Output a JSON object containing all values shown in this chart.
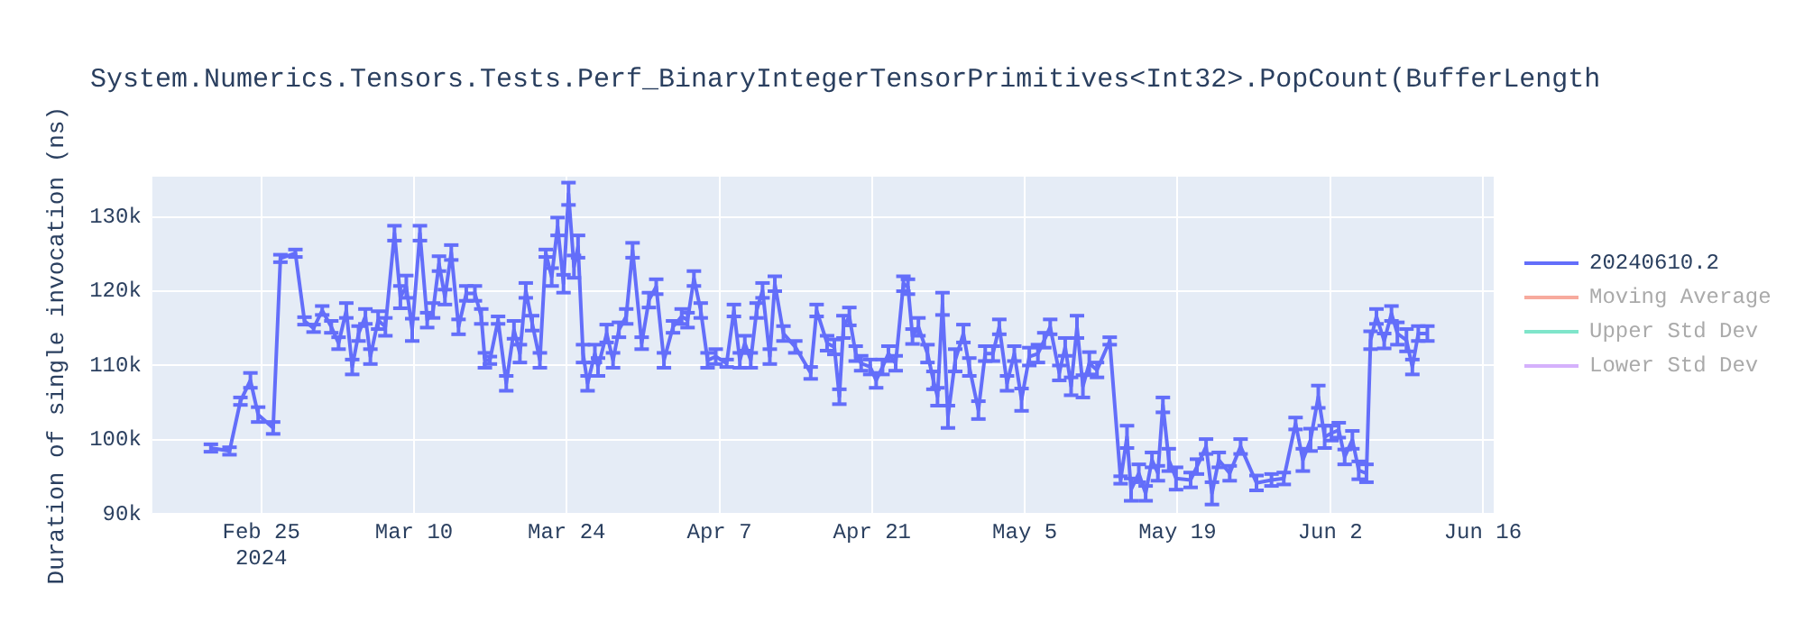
{
  "chart_data": {
    "type": "line",
    "title": "System.Numerics.Tensors.Tests.Perf_BinaryIntegerTensorPrimitives<Int32>.PopCount(BufferLength",
    "ylabel": "Duration of single invocation (ns)",
    "x": [
      "2024-02-20T09:00",
      "2024-02-22T02:00",
      "2024-02-23T02:00",
      "2024-02-24T00:00",
      "2024-02-24T17:00",
      "2024-02-26T02:00",
      "2024-02-26T18:00",
      "2024-02-28T03:00",
      "2024-02-28T23:00",
      "2024-02-29T19:00",
      "2024-03-01T14:00",
      "2024-03-02T10:00",
      "2024-03-03T02:00",
      "2024-03-03T19:00",
      "2024-03-04T08:00",
      "2024-03-04T22:00",
      "2024-03-05T13:00",
      "2024-03-06T00:00",
      "2024-03-06T17:00",
      "2024-03-07T09:00",
      "2024-03-08T05:00",
      "2024-03-08T18:00",
      "2024-03-09T07:00",
      "2024-03-09T20:00",
      "2024-03-10T13:00",
      "2024-03-11T05:00",
      "2024-03-11T18:00",
      "2024-03-12T07:00",
      "2024-03-12T20:00",
      "2024-03-13T10:00",
      "2024-03-14T02:00",
      "2024-03-14T19:00",
      "2024-03-15T14:00",
      "2024-03-16T04:00",
      "2024-03-16T12:00",
      "2024-03-16T23:00",
      "2024-03-17T17:00",
      "2024-03-18T11:00",
      "2024-03-19T04:00",
      "2024-03-19T17:00",
      "2024-03-20T06:00",
      "2024-03-20T20:00",
      "2024-03-21T13:00",
      "2024-03-22T02:00",
      "2024-03-22T15:00",
      "2024-03-23T04:00",
      "2024-03-23T17:00",
      "2024-03-24T04:00",
      "2024-03-24T16:00",
      "2024-03-25T01:00",
      "2024-03-25T12:00",
      "2024-03-25T22:00",
      "2024-03-26T14:00",
      "2024-03-26T21:00",
      "2024-03-27T16:00",
      "2024-03-28T06:00",
      "2024-03-28T19:00",
      "2024-03-29T11:00",
      "2024-03-30T01:00",
      "2024-03-30T21:00",
      "2024-03-31T13:00",
      "2024-04-01T05:00",
      "2024-04-01T22:00",
      "2024-04-02T18:00",
      "2024-04-03T13:00",
      "2024-04-04T02:00",
      "2024-04-04T16:00",
      "2024-04-05T07:00",
      "2024-04-05T22:00",
      "2024-04-06T16:00",
      "2024-04-07T16:00",
      "2024-04-08T08:00",
      "2024-04-08T21:00",
      "2024-04-09T08:00",
      "2024-04-09T21:00",
      "2024-04-10T10:00",
      "2024-04-10T23:00",
      "2024-04-11T15:00",
      "2024-04-12T02:00",
      "2024-04-12T21:00",
      "2024-04-13T23:00",
      "2024-04-15T09:00",
      "2024-04-15T22:00",
      "2024-04-16T21:00",
      "2024-04-17T13:00",
      "2024-04-18T00:00",
      "2024-04-18T09:00",
      "2024-04-18T22:00",
      "2024-04-19T12:00",
      "2024-04-20T00:00",
      "2024-04-20T20:00",
      "2024-04-21T09:00",
      "2024-04-21T23:00",
      "2024-04-22T12:00",
      "2024-04-23T04:00",
      "2024-04-23T21:00",
      "2024-04-24T07:00",
      "2024-04-24T17:00",
      "2024-04-25T06:00",
      "2024-04-26T02:00",
      "2024-04-26T15:00",
      "2024-04-27T00:00",
      "2024-04-27T11:00",
      "2024-04-27T23:00",
      "2024-04-28T15:00",
      "2024-04-29T09:00",
      "2024-04-29T22:00",
      "2024-04-30T18:00",
      "2024-05-01T09:00",
      "2024-05-02T02:00",
      "2024-05-02T16:00",
      "2024-05-03T09:00",
      "2024-05-04T01:00",
      "2024-05-04T17:00",
      "2024-05-05T10:00",
      "2024-05-06T05:00",
      "2024-05-06T19:00",
      "2024-05-07T08:00",
      "2024-05-08T04:00",
      "2024-05-08T17:00",
      "2024-05-09T06:00",
      "2024-05-09T19:00",
      "2024-05-10T08:00",
      "2024-05-10T22:00",
      "2024-05-11T15:00",
      "2024-05-12T19:00",
      "2024-05-13T19:00",
      "2024-05-14T09:00",
      "2024-05-14T18:00",
      "2024-05-15T11:00",
      "2024-05-16T02:00",
      "2024-05-16T16:00",
      "2024-05-17T05:00",
      "2024-05-17T16:00",
      "2024-05-18T05:00",
      "2024-05-18T21:00",
      "2024-05-20T05:00",
      "2024-05-20T19:00",
      "2024-05-21T15:00",
      "2024-05-22T04:00",
      "2024-05-22T19:00",
      "2024-05-23T19:00",
      "2024-05-24T19:00",
      "2024-05-26T06:00",
      "2024-05-27T15:00",
      "2024-05-28T18:00",
      "2024-05-29T20:00",
      "2024-05-30T12:00",
      "2024-05-31T05:00",
      "2024-05-31T22:00",
      "2024-06-01T12:00",
      "2024-06-02T03:00",
      "2024-06-02T19:00",
      "2024-06-03T08:00",
      "2024-06-04T01:00",
      "2024-06-04T15:00",
      "2024-06-05T08:00",
      "2024-06-05T17:00",
      "2024-06-06T06:00",
      "2024-06-06T23:00",
      "2024-06-07T15:00",
      "2024-06-08T04:00",
      "2024-06-09T00:00",
      "2024-06-09T13:00",
      "2024-06-10T02:00",
      "2024-06-10T22:00"
    ],
    "series": [
      {
        "name": "20240610.2",
        "color": "#636efa",
        "values": [
          98900,
          98500,
          105200,
          108000,
          103400,
          101600,
          124400,
          125100,
          116000,
          115000,
          117400,
          115200,
          113000,
          117400,
          109800,
          114300,
          116600,
          111200,
          116100,
          115200,
          127800,
          119200,
          120600,
          114800,
          127800,
          116100,
          117400,
          123700,
          119200,
          125200,
          115200,
          119700,
          119700,
          116600,
          110700,
          110700,
          116100,
          107600,
          114800,
          111600,
          120100,
          115700,
          110700,
          125100,
          121900,
          128700,
          121000,
          133100,
          123300,
          126000,
          111600,
          107600,
          111600,
          109800,
          114300,
          110700,
          114800,
          116600,
          125500,
          113000,
          118800,
          120600,
          110700,
          115200,
          116600,
          116100,
          121700,
          117400,
          110700,
          111200,
          110300,
          117400,
          110700,
          113000,
          110700,
          117400,
          120100,
          111200,
          121000,
          114300,
          112500,
          109000,
          117400,
          113000,
          112500,
          105800,
          115200,
          116600,
          111600,
          110300,
          109800,
          108000,
          109800,
          111600,
          110300,
          121000,
          120600,
          113900,
          115200,
          111600,
          108000,
          105800,
          118300,
          103100,
          110700,
          114300,
          109800,
          104000,
          111600,
          111600,
          115200,
          107600,
          111600,
          105400,
          111200,
          111600,
          113400,
          115200,
          109000,
          112500,
          107200,
          115200,
          107200,
          110300,
          109400,
          113300,
          94600,
          100400,
          93300,
          95500,
          92800,
          97300,
          95500,
          104700,
          97300,
          94800,
          94600,
          96400,
          99100,
          92800,
          97300,
          95500,
          99100,
          94200,
          94600,
          94800,
          102200,
          97300,
          100000,
          105800,
          100400,
          100900,
          101300,
          97700,
          100000,
          95900,
          95500,
          113400,
          116600,
          113300,
          117000,
          114300,
          113400,
          109800,
          114300,
          114300
        ],
        "errors": [
          500,
          500,
          500,
          1000,
          1000,
          800,
          500,
          500,
          500,
          500,
          600,
          800,
          800,
          1000,
          1000,
          1000,
          1000,
          1000,
          1200,
          1200,
          1000,
          1500,
          1500,
          1500,
          1000,
          1000,
          1000,
          1000,
          1000,
          1000,
          1000,
          1000,
          1000,
          1000,
          1000,
          500,
          500,
          1000,
          1200,
          1200,
          1000,
          1000,
          1000,
          500,
          1200,
          1200,
          1200,
          1500,
          1500,
          1500,
          1200,
          1000,
          1200,
          1200,
          1200,
          1000,
          1000,
          1000,
          1000,
          800,
          1000,
          1000,
          1000,
          800,
          1000,
          1000,
          1000,
          1000,
          1000,
          1000,
          500,
          800,
          1000,
          1000,
          1000,
          1000,
          1000,
          1000,
          1000,
          1000,
          800,
          800,
          800,
          1000,
          1000,
          1000,
          1500,
          1200,
          1000,
          1000,
          1000,
          1000,
          1000,
          1000,
          1000,
          1000,
          1000,
          1000,
          1200,
          1200,
          1200,
          1200,
          1500,
          1500,
          1500,
          1200,
          1200,
          1200,
          1000,
          1000,
          1000,
          1000,
          1000,
          1500,
          1200,
          1200,
          1000,
          1000,
          1000,
          1200,
          1200,
          1500,
          1500,
          1500,
          1000,
          500,
          500,
          1500,
          1500,
          1200,
          1000,
          1000,
          1000,
          1000,
          1500,
          1500,
          1000,
          1000,
          1000,
          1500,
          1000,
          1000,
          1000,
          1000,
          800,
          800,
          800,
          1500,
          1500,
          1500,
          1500,
          1000,
          1000,
          1000,
          1200,
          1200,
          1200,
          1200,
          1000,
          1000,
          1000,
          1500,
          1500,
          1000,
          1000,
          1000
        ]
      },
      {
        "name": "Moving Average",
        "color": "#ef553b",
        "values": [
          null,
          null,
          null,
          null,
          null,
          null,
          null,
          null,
          null,
          null,
          null,
          null,
          null,
          null,
          null,
          null,
          null,
          null,
          null,
          null,
          null,
          null,
          null,
          null,
          null,
          null,
          null,
          null,
          null,
          null,
          null,
          null,
          null,
          null,
          null,
          null,
          null,
          null,
          null,
          null,
          null,
          null,
          null,
          null,
          null,
          null,
          null,
          null,
          null,
          null,
          null,
          null,
          null,
          null,
          null,
          null,
          null,
          null,
          null,
          null,
          null,
          null,
          null,
          null,
          null,
          null,
          null,
          null,
          null,
          null,
          null,
          null,
          null,
          null,
          null,
          null,
          null,
          null,
          null,
          null,
          null,
          null,
          null,
          null,
          null,
          null,
          null,
          null,
          null,
          null,
          null,
          null,
          null,
          null,
          null,
          null,
          null,
          null,
          null,
          null,
          null,
          null,
          null,
          null,
          null,
          null,
          null,
          null,
          null,
          null,
          null,
          null,
          null,
          null,
          null,
          null,
          null,
          null,
          null,
          null,
          null,
          null,
          null,
          null,
          null,
          null,
          null,
          null,
          null,
          null,
          null,
          null,
          null,
          null,
          null,
          null,
          null,
          null,
          null,
          null,
          null,
          null,
          null,
          null,
          null,
          null,
          null,
          null,
          null,
          null,
          null,
          null,
          null,
          null,
          null,
          null,
          null,
          null,
          null,
          null,
          null,
          null,
          null,
          null,
          null,
          null
        ]
      },
      {
        "name": "Upper Std Dev",
        "color": "#00cc96",
        "values": [
          null,
          null,
          null,
          null,
          null,
          null,
          null,
          null,
          null,
          null,
          null,
          null,
          null,
          null,
          null,
          null,
          null,
          null,
          null,
          null,
          null,
          null,
          null,
          null,
          null,
          null,
          null,
          null,
          null,
          null,
          null,
          null,
          null,
          null,
          null,
          null,
          null,
          null,
          null,
          null,
          null,
          null,
          null,
          null,
          null,
          null,
          null,
          null,
          null,
          null,
          null,
          null,
          null,
          null,
          null,
          null,
          null,
          null,
          null,
          null,
          null,
          null,
          null,
          null,
          null,
          null,
          null,
          null,
          null,
          null,
          null,
          null,
          null,
          null,
          null,
          null,
          null,
          null,
          null,
          null,
          null,
          null,
          null,
          null,
          null,
          null,
          null,
          null,
          null,
          null,
          null,
          null,
          null,
          null,
          null,
          null,
          null,
          null,
          null,
          null,
          null,
          null,
          null,
          null,
          null,
          null,
          null,
          null,
          null,
          null,
          null,
          null,
          null,
          null,
          null,
          null,
          null,
          null,
          null,
          null,
          null,
          null,
          null,
          null,
          null,
          null,
          null,
          null,
          null,
          null,
          null,
          null,
          null,
          null,
          null,
          null,
          null,
          null,
          null,
          null,
          null,
          null,
          null,
          null,
          null,
          null,
          null,
          null,
          null,
          null,
          null,
          null,
          null,
          null,
          null,
          null,
          null,
          null,
          null,
          null,
          null,
          null,
          null,
          null,
          null,
          null
        ]
      },
      {
        "name": "Lower Std Dev",
        "color": "#ab63fa",
        "values": [
          null,
          null,
          null,
          null,
          null,
          null,
          null,
          null,
          null,
          null,
          null,
          null,
          null,
          null,
          null,
          null,
          null,
          null,
          null,
          null,
          null,
          null,
          null,
          null,
          null,
          null,
          null,
          null,
          null,
          null,
          null,
          null,
          null,
          null,
          null,
          null,
          null,
          null,
          null,
          null,
          null,
          null,
          null,
          null,
          null,
          null,
          null,
          null,
          null,
          null,
          null,
          null,
          null,
          null,
          null,
          null,
          null,
          null,
          null,
          null,
          null,
          null,
          null,
          null,
          null,
          null,
          null,
          null,
          null,
          null,
          null,
          null,
          null,
          null,
          null,
          null,
          null,
          null,
          null,
          null,
          null,
          null,
          null,
          null,
          null,
          null,
          null,
          null,
          null,
          null,
          null,
          null,
          null,
          null,
          null,
          null,
          null,
          null,
          null,
          null,
          null,
          null,
          null,
          null,
          null,
          null,
          null,
          null,
          null,
          null,
          null,
          null,
          null,
          null,
          null,
          null,
          null,
          null,
          null,
          null,
          null,
          null,
          null,
          null,
          null,
          null,
          null,
          null,
          null,
          null,
          null,
          null,
          null,
          null,
          null,
          null,
          null,
          null,
          null,
          null,
          null,
          null,
          null,
          null,
          null,
          null,
          null,
          null,
          null,
          null,
          null,
          null,
          null,
          null,
          null,
          null,
          null,
          null,
          null,
          null,
          null,
          null,
          null,
          null,
          null,
          null
        ]
      }
    ],
    "xlim": [
      "2024-02-15",
      "2024-06-17"
    ],
    "xticks": [
      {
        "value": "2024-02-25",
        "label": "Feb 25\n2024"
      },
      {
        "value": "2024-03-10",
        "label": "Mar 10"
      },
      {
        "value": "2024-03-24",
        "label": "Mar 24"
      },
      {
        "value": "2024-04-07",
        "label": "Apr 7"
      },
      {
        "value": "2024-04-21",
        "label": "Apr 21"
      },
      {
        "value": "2024-05-05",
        "label": "May 5"
      },
      {
        "value": "2024-05-19",
        "label": "May 19"
      },
      {
        "value": "2024-06-02",
        "label": "Jun 2"
      },
      {
        "value": "2024-06-16",
        "label": "Jun 16"
      }
    ],
    "ylim": [
      90000,
      135400
    ],
    "yticks": [
      {
        "value": 90000,
        "label": "90k"
      },
      {
        "value": 100000,
        "label": "100k"
      },
      {
        "value": 110000,
        "label": "110k"
      },
      {
        "value": 120000,
        "label": "120k"
      },
      {
        "value": 130000,
        "label": "130k"
      }
    ],
    "grid": true,
    "legend": "top right",
    "marker": "none",
    "line_style": "solid"
  }
}
